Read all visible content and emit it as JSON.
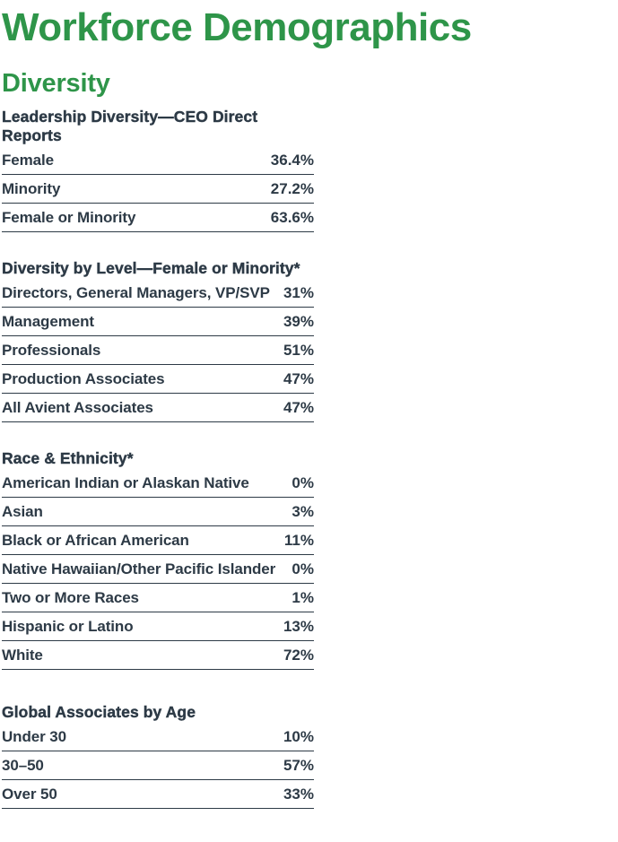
{
  "page": {
    "title": "Workforce Demographics",
    "subtitle": "Diversity"
  },
  "colors": {
    "accent_green": "#2e9549",
    "text_dark": "#2d3a46",
    "row_divider": "#2d3a46",
    "background": "#ffffff"
  },
  "sections": [
    {
      "heading": "Leadership Diversity—CEO Direct Reports",
      "rows": [
        {
          "label": "Female",
          "value": "36.4%"
        },
        {
          "label": "Minority",
          "value": "27.2%"
        },
        {
          "label": "Female or Minority",
          "value": "63.6%"
        }
      ]
    },
    {
      "heading": "Diversity by Level—Female or Minority*",
      "rows": [
        {
          "label": "Directors, General Managers, VP/SVP",
          "value": "31%"
        },
        {
          "label": "Management",
          "value": "39%"
        },
        {
          "label": "Professionals",
          "value": "51%"
        },
        {
          "label": "Production Associates",
          "value": "47%"
        },
        {
          "label": "All Avient Associates",
          "value": "47%"
        }
      ]
    },
    {
      "heading": "Race & Ethnicity*",
      "rows": [
        {
          "label": "American Indian or Alaskan Native",
          "value": "0%"
        },
        {
          "label": "Asian",
          "value": "3%"
        },
        {
          "label": "Black or African American",
          "value": "11%"
        },
        {
          "label": "Native Hawaiian/Other Pacific Islander",
          "value": "0%"
        },
        {
          "label": "Two or More Races",
          "value": "1%"
        },
        {
          "label": "Hispanic or Latino",
          "value": "13%"
        },
        {
          "label": "White",
          "value": "72%"
        }
      ]
    },
    {
      "heading": "Global Associates by Age",
      "rows": [
        {
          "label": "Under 30",
          "value": "10%"
        },
        {
          "label": "30–50",
          "value": "57%"
        },
        {
          "label": "Over 50",
          "value": "33%"
        }
      ]
    }
  ]
}
